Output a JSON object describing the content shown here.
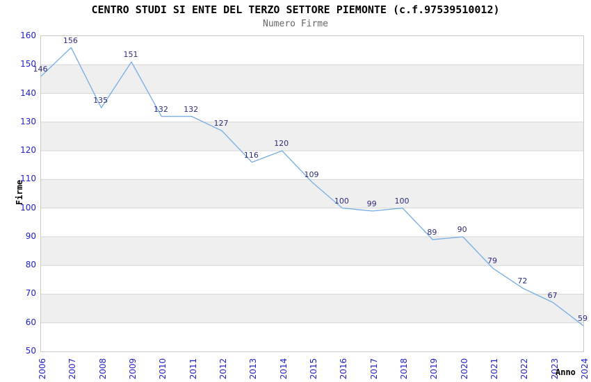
{
  "chart_data": {
    "type": "line",
    "title": "CENTRO STUDI SI ENTE DEL TERZO SETTORE PIEMONTE (c.f.97539510012)",
    "subtitle": "Numero Firme",
    "xlabel": "Anno",
    "ylabel": "Firme",
    "categories": [
      "2006",
      "2007",
      "2008",
      "2009",
      "2010",
      "2011",
      "2012",
      "2013",
      "2014",
      "2015",
      "2016",
      "2017",
      "2018",
      "2019",
      "2020",
      "2021",
      "2022",
      "2023",
      "2024"
    ],
    "values": [
      146,
      156,
      135,
      151,
      132,
      132,
      127,
      116,
      120,
      109,
      100,
      99,
      100,
      89,
      90,
      79,
      72,
      67,
      59
    ],
    "ylim": [
      50,
      160
    ],
    "ytick_step": 10,
    "grid": "horizontal-only",
    "legend": "none",
    "value_labels_shown": true,
    "x_tick_rotation_deg": 90,
    "colors": {
      "line": "#7cb0e4",
      "tick_label": "#2020cc",
      "value_label": "#2b2b7d",
      "band": "#efefef",
      "gridline": "#d6d6d6",
      "plot_border": "#c8c8c8",
      "title": "#000000",
      "subtitle": "#666666",
      "background": "#ffffff"
    }
  }
}
